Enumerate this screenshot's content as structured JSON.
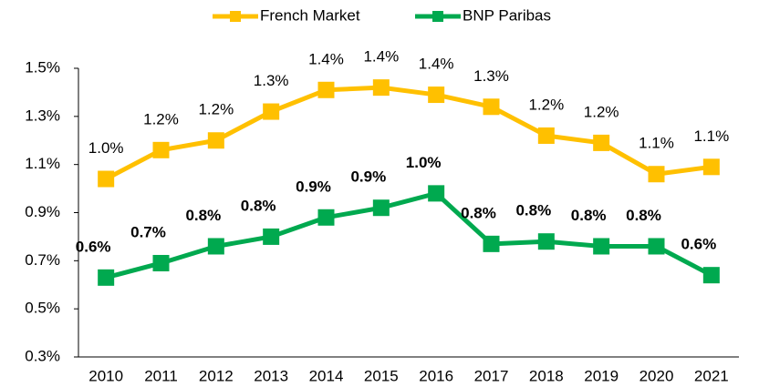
{
  "chart_data": {
    "type": "line",
    "categories": [
      "2010",
      "2011",
      "2012",
      "2013",
      "2014",
      "2015",
      "2016",
      "2017",
      "2018",
      "2019",
      "2020",
      "2021"
    ],
    "series": [
      {
        "name": "French Market",
        "color": "#FFC000",
        "values": [
          1.04,
          1.16,
          1.2,
          1.32,
          1.41,
          1.42,
          1.39,
          1.34,
          1.22,
          1.19,
          1.06,
          1.09
        ],
        "value_labels": [
          "1.0%",
          "1.2%",
          "1.2%",
          "1.3%",
          "1.4%",
          "1.4%",
          "1.4%",
          "1.3%",
          "1.2%",
          "1.2%",
          "1.1%",
          "1.1%"
        ]
      },
      {
        "name": "BNP Paribas",
        "color": "#00A94F",
        "values": [
          0.63,
          0.69,
          0.76,
          0.8,
          0.88,
          0.92,
          0.98,
          0.77,
          0.78,
          0.76,
          0.76,
          0.64
        ],
        "value_labels": [
          "0.6%",
          "0.7%",
          "0.8%",
          "0.8%",
          "0.9%",
          "0.9%",
          "1.0%",
          "0.8%",
          "0.8%",
          "0.8%",
          "0.8%",
          "0.6%"
        ]
      }
    ],
    "ylim": [
      0.3,
      1.5
    ],
    "yticks": [
      {
        "value": 0.3,
        "label": "0.3%"
      },
      {
        "value": 0.5,
        "label": "0.5%"
      },
      {
        "value": 0.7,
        "label": "0.7%"
      },
      {
        "value": 0.9,
        "label": "0.9%"
      },
      {
        "value": 1.1,
        "label": "1.1%"
      },
      {
        "value": 1.3,
        "label": "1.3%"
      },
      {
        "value": 1.5,
        "label": "1.5%"
      }
    ],
    "legend": "top"
  }
}
